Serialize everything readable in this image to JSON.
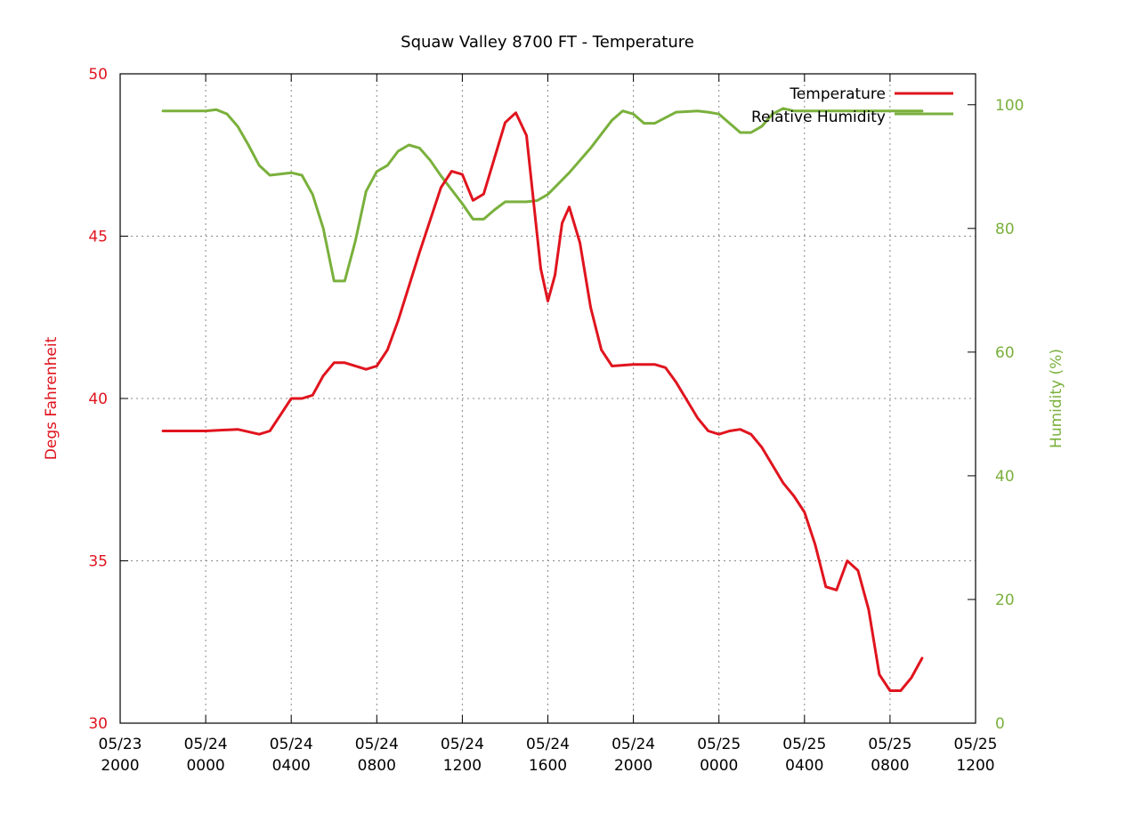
{
  "chart_data": {
    "type": "line",
    "title": "Squaw Valley 8700 FT - Temperature",
    "ylabel": "Degs Fahrenheit",
    "y2label": "Humidity (%)",
    "ylim": [
      30,
      50
    ],
    "y2lim": [
      0,
      105
    ],
    "yticks": [
      30,
      35,
      40,
      45,
      50
    ],
    "y2ticks": [
      0,
      20,
      40,
      60,
      80,
      100
    ],
    "xlim": [
      "05/23 2000",
      "05/25 1200"
    ],
    "xticks": [
      {
        "l1": "05/23",
        "l2": "2000"
      },
      {
        "l1": "05/24",
        "l2": "0000"
      },
      {
        "l1": "05/24",
        "l2": "0400"
      },
      {
        "l1": "05/24",
        "l2": "0800"
      },
      {
        "l1": "05/24",
        "l2": "1200"
      },
      {
        "l1": "05/24",
        "l2": "1600"
      },
      {
        "l1": "05/24",
        "l2": "2000"
      },
      {
        "l1": "05/25",
        "l2": "0000"
      },
      {
        "l1": "05/25",
        "l2": "0400"
      },
      {
        "l1": "05/25",
        "l2": "0800"
      },
      {
        "l1": "05/25",
        "l2": "1200"
      }
    ],
    "grid": true,
    "legend_position": "top-right",
    "colors": {
      "temperature": "#e0141e",
      "humidity": "#7ab03c"
    },
    "series": [
      {
        "name": "Temperature",
        "axis": "left",
        "color": "#e0141e",
        "points": [
          [
            "05/23 2200",
            39.0
          ],
          [
            "05/24 0000",
            39.0
          ],
          [
            "05/24 0130",
            39.05
          ],
          [
            "05/24 0230",
            38.9
          ],
          [
            "05/24 0300",
            39.0
          ],
          [
            "05/24 0330",
            39.5
          ],
          [
            "05/24 0400",
            40.0
          ],
          [
            "05/24 0430",
            40.0
          ],
          [
            "05/24 0500",
            40.1
          ],
          [
            "05/24 0530",
            40.7
          ],
          [
            "05/24 0600",
            41.1
          ],
          [
            "05/24 0630",
            41.1
          ],
          [
            "05/24 0730",
            40.9
          ],
          [
            "05/24 0800",
            41.0
          ],
          [
            "05/24 0830",
            41.5
          ],
          [
            "05/24 0900",
            42.4
          ],
          [
            "05/24 1000",
            44.5
          ],
          [
            "05/24 1100",
            46.5
          ],
          [
            "05/24 1130",
            47.0
          ],
          [
            "05/24 1200",
            46.9
          ],
          [
            "05/24 1230",
            46.1
          ],
          [
            "05/24 1300",
            46.3
          ],
          [
            "05/24 1400",
            48.5
          ],
          [
            "05/24 1430",
            48.8
          ],
          [
            "05/24 1500",
            48.1
          ],
          [
            "05/24 1540",
            44.0
          ],
          [
            "05/24 1600",
            43.0
          ],
          [
            "05/24 1620",
            43.8
          ],
          [
            "05/24 1640",
            45.4
          ],
          [
            "05/24 1700",
            45.9
          ],
          [
            "05/24 1730",
            44.8
          ],
          [
            "05/24 1800",
            42.8
          ],
          [
            "05/24 1830",
            41.5
          ],
          [
            "05/24 1900",
            41.0
          ],
          [
            "05/24 2000",
            41.05
          ],
          [
            "05/24 2100",
            41.05
          ],
          [
            "05/24 2130",
            40.95
          ],
          [
            "05/24 2200",
            40.5
          ],
          [
            "05/24 2300",
            39.4
          ],
          [
            "05/24 2330",
            39.0
          ],
          [
            "05/25 0000",
            38.9
          ],
          [
            "05/25 0030",
            39.0
          ],
          [
            "05/25 0100",
            39.05
          ],
          [
            "05/25 0130",
            38.9
          ],
          [
            "05/25 0200",
            38.5
          ],
          [
            "05/25 0300",
            37.4
          ],
          [
            "05/25 0330",
            37.0
          ],
          [
            "05/25 0400",
            36.5
          ],
          [
            "05/25 0430",
            35.5
          ],
          [
            "05/25 0500",
            34.2
          ],
          [
            "05/25 0530",
            34.1
          ],
          [
            "05/25 0600",
            35.0
          ],
          [
            "05/25 0630",
            34.7
          ],
          [
            "05/25 0700",
            33.5
          ],
          [
            "05/25 0730",
            31.5
          ],
          [
            "05/25 0800",
            31.0
          ],
          [
            "05/25 0830",
            31.0
          ],
          [
            "05/25 0900",
            31.4
          ],
          [
            "05/25 0930",
            32.0
          ]
        ]
      },
      {
        "name": "Relative Humidity",
        "axis": "right",
        "color": "#7ab03c",
        "points": [
          [
            "05/23 2200",
            99
          ],
          [
            "05/24 0000",
            99
          ],
          [
            "05/24 0030",
            99.2
          ],
          [
            "05/24 0100",
            98.5
          ],
          [
            "05/24 0130",
            96.5
          ],
          [
            "05/24 0200",
            93.5
          ],
          [
            "05/24 0230",
            90.2
          ],
          [
            "05/24 0300",
            88.6
          ],
          [
            "05/24 0330",
            88.8
          ],
          [
            "05/24 0400",
            89
          ],
          [
            "05/24 0430",
            88.6
          ],
          [
            "05/24 0500",
            85.5
          ],
          [
            "05/24 0530",
            80
          ],
          [
            "05/24 0600",
            71.5
          ],
          [
            "05/24 0630",
            71.5
          ],
          [
            "05/24 0700",
            78
          ],
          [
            "05/24 0730",
            86
          ],
          [
            "05/24 0800",
            89.2
          ],
          [
            "05/24 0830",
            90.2
          ],
          [
            "05/24 0900",
            92.5
          ],
          [
            "05/24 0930",
            93.5
          ],
          [
            "05/24 1000",
            93
          ],
          [
            "05/24 1030",
            91
          ],
          [
            "05/24 1100",
            88.5
          ],
          [
            "05/24 1200",
            84
          ],
          [
            "05/24 1230",
            81.5
          ],
          [
            "05/24 1300",
            81.5
          ],
          [
            "05/24 1330",
            83
          ],
          [
            "05/24 1400",
            84.3
          ],
          [
            "05/24 1430",
            84.3
          ],
          [
            "05/24 1500",
            84.3
          ],
          [
            "05/24 1530",
            84.5
          ],
          [
            "05/24 1600",
            85.5
          ],
          [
            "05/24 1700",
            89
          ],
          [
            "05/24 1800",
            93
          ],
          [
            "05/24 1900",
            97.5
          ],
          [
            "05/24 1930",
            99
          ],
          [
            "05/24 2000",
            98.5
          ],
          [
            "05/24 2030",
            97
          ],
          [
            "05/24 2100",
            97
          ],
          [
            "05/24 2200",
            98.8
          ],
          [
            "05/24 2300",
            99
          ],
          [
            "05/24 2330",
            98.8
          ],
          [
            "05/25 0000",
            98.5
          ],
          [
            "05/25 0030",
            97
          ],
          [
            "05/25 0100",
            95.5
          ],
          [
            "05/25 0130",
            95.5
          ],
          [
            "05/25 0200",
            96.5
          ],
          [
            "05/25 0230",
            98.5
          ],
          [
            "05/25 0300",
            99.4
          ],
          [
            "05/25 0330",
            99
          ],
          [
            "05/25 0400",
            99
          ],
          [
            "05/25 0930",
            99
          ]
        ]
      }
    ]
  }
}
